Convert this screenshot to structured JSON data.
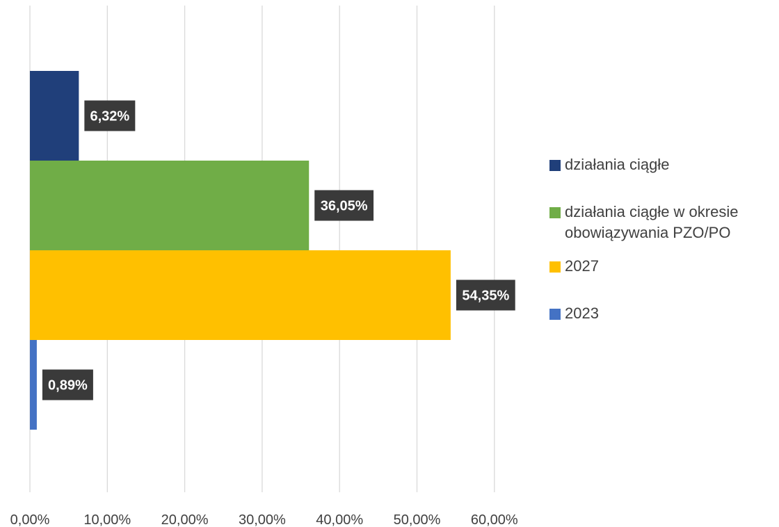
{
  "chart_data": {
    "type": "bar",
    "orientation": "horizontal",
    "xlim": [
      0,
      60
    ],
    "x_tick_labels": [
      "0,00%",
      "10,00%",
      "20,00%",
      "30,00%",
      "40,00%",
      "50,00%",
      "60,00%"
    ],
    "grid": "vertical",
    "legend_position": "right",
    "series": [
      {
        "name": "działania ciągłe",
        "value": 6.32,
        "label": "6,32%",
        "color": "#203f7a"
      },
      {
        "name": "działania ciągłe w okresie obowiązywania PZO/PO",
        "value": 36.05,
        "label": "36,05%",
        "color": "#70ad47"
      },
      {
        "name": "2027",
        "value": 54.35,
        "label": "54,35%",
        "color": "#ffc000"
      },
      {
        "name": "2023",
        "value": 0.89,
        "label": "0,89%",
        "color": "#4472c4"
      }
    ]
  },
  "legend": [
    {
      "label": "działania ciągłe",
      "color": "#203f7a"
    },
    {
      "label": "działania ciągłe w okresie\nobowiązywania PZO/PO",
      "color": "#70ad47"
    },
    {
      "label": "2027",
      "color": "#ffc000"
    },
    {
      "label": "2023",
      "color": "#4472c4"
    }
  ]
}
